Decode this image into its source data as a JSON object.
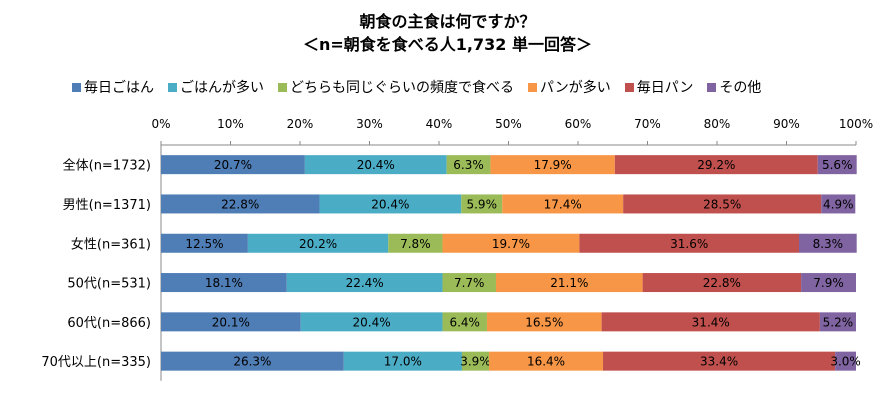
{
  "chart_data": {
    "type": "bar",
    "orientation": "horizontal",
    "stacked": "percent",
    "title": "朝食の主食は何ですか？",
    "subtitle": "＜n=朝食を食べる人1,732 単一回答＞",
    "categories": [
      "全体(n=1732)",
      "男性(n=1371)",
      "女性(n=361)",
      "50代(n=531)",
      "60代(n=866)",
      "70代以上(n=335)"
    ],
    "series": [
      {
        "name": "毎日ごはん",
        "color": "#4F7DB5",
        "values": [
          20.7,
          22.8,
          12.5,
          18.1,
          20.1,
          26.3
        ]
      },
      {
        "name": "ごはんが多い",
        "color": "#4BACC6",
        "values": [
          20.4,
          20.4,
          20.2,
          22.4,
          20.4,
          17.0
        ]
      },
      {
        "name": "どちらも同じぐらいの頻度で食べる",
        "color": "#9BBB59",
        "values": [
          6.3,
          5.9,
          7.8,
          7.7,
          6.4,
          3.9
        ]
      },
      {
        "name": "パンが多い",
        "color": "#F79646",
        "values": [
          17.9,
          17.4,
          19.7,
          21.1,
          16.5,
          16.4
        ]
      },
      {
        "name": "毎日パン",
        "color": "#C0504D",
        "values": [
          29.2,
          28.5,
          31.6,
          22.8,
          31.4,
          33.4
        ]
      },
      {
        "name": "その他",
        "color": "#8064A2",
        "values": [
          5.6,
          4.9,
          8.3,
          7.9,
          5.2,
          3.0
        ]
      }
    ],
    "data_labels": [
      [
        "20.7%",
        "20.4%",
        "6.3%",
        "17.9%",
        "29.2%",
        "5.6%"
      ],
      [
        "22.8%",
        "20.4%",
        "5.9%",
        "17.4%",
        "28.5%",
        "4.9%"
      ],
      [
        "12.5%",
        "20.2%",
        "7.8%",
        "19.7%",
        "31.6%",
        "8.3%"
      ],
      [
        "18.1%",
        "22.4%",
        "7.7%",
        "21.1%",
        "22.8%",
        "7.9%"
      ],
      [
        "20.1%",
        "20.4%",
        "6.4%",
        "16.5%",
        "31.4%",
        "5.2%"
      ],
      [
        "26.3%",
        "17.0%",
        "3.9%",
        "16.4%",
        "33.4%",
        "3.0%"
      ]
    ],
    "x_ticks": [
      "0%",
      "10%",
      "20%",
      "30%",
      "40%",
      "50%",
      "60%",
      "70%",
      "80%",
      "90%",
      "100%"
    ],
    "xlim": [
      0,
      100
    ],
    "axis_position": "top",
    "legend_position": "top",
    "grid": false
  }
}
